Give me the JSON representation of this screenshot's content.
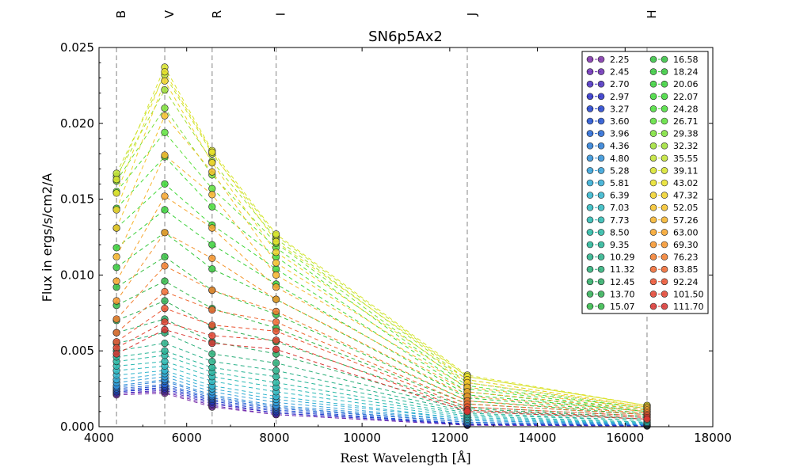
{
  "chart_data": {
    "type": "line",
    "title": "SN6p5Ax2",
    "xlabel": "Rest Wavelength [Å]",
    "ylabel": "Flux in ergs/s/cm2/A",
    "xlim": [
      4000,
      18000
    ],
    "ylim": [
      0.0,
      0.025
    ],
    "xticks": [
      "4000",
      "6000",
      "8000",
      "10000",
      "12000",
      "14000",
      "16000",
      "18000"
    ],
    "yticks": [
      "0.000",
      "0.005",
      "0.010",
      "0.015",
      "0.020",
      "0.025"
    ],
    "bands": [
      {
        "name": "B",
        "wavelength": 4400
      },
      {
        "name": "V",
        "wavelength": 5500
      },
      {
        "name": "R",
        "wavelength": 6580
      },
      {
        "name": "I",
        "wavelength": 8040
      },
      {
        "name": "J",
        "wavelength": 12400
      },
      {
        "name": "H",
        "wavelength": 16500
      }
    ],
    "legend_location": "upper right",
    "x": [
      4400,
      5500,
      6580,
      8040,
      12400,
      16500
    ],
    "series": [
      {
        "name": "2.25",
        "color": "#7b2fa8",
        "values": [
          0.0021,
          0.0022,
          0.0013,
          0.0008,
          0.0001,
          5e-05
        ]
      },
      {
        "name": "2.45",
        "color": "#6a2bb4",
        "values": [
          0.0022,
          0.0023,
          0.0014,
          0.0008,
          0.0001,
          5e-05
        ]
      },
      {
        "name": "2.70",
        "color": "#4a2ec0",
        "values": [
          0.0022,
          0.0024,
          0.0015,
          0.0009,
          0.00015,
          6e-05
        ]
      },
      {
        "name": "2.97",
        "color": "#2a2ec8",
        "values": [
          0.0023,
          0.0025,
          0.0016,
          0.0009,
          0.00015,
          7e-05
        ]
      },
      {
        "name": "3.27",
        "color": "#1f3fcc",
        "values": [
          0.0023,
          0.0026,
          0.0017,
          0.001,
          0.0002,
          8e-05
        ]
      },
      {
        "name": "3.60",
        "color": "#2050d0",
        "values": [
          0.0024,
          0.0027,
          0.0018,
          0.0011,
          0.0002,
          0.0001
        ]
      },
      {
        "name": "3.96",
        "color": "#2566d4",
        "values": [
          0.0025,
          0.0028,
          0.0019,
          0.0012,
          0.0003,
          0.0001
        ]
      },
      {
        "name": "4.36",
        "color": "#2a7cd6",
        "values": [
          0.0026,
          0.003,
          0.002,
          0.0013,
          0.0003,
          0.00012
        ]
      },
      {
        "name": "4.80",
        "color": "#3090d8",
        "values": [
          0.0027,
          0.0031,
          0.0021,
          0.0014,
          0.0004,
          0.00015
        ]
      },
      {
        "name": "5.28",
        "color": "#33a0d8",
        "values": [
          0.0029,
          0.0033,
          0.0023,
          0.0016,
          0.0004,
          0.0002
        ]
      },
      {
        "name": "5.81",
        "color": "#33acd4",
        "values": [
          0.0031,
          0.0035,
          0.0025,
          0.0018,
          0.0005,
          0.0002
        ]
      },
      {
        "name": "6.39",
        "color": "#30b4cc",
        "values": [
          0.0034,
          0.0037,
          0.0027,
          0.002,
          0.0005,
          0.00025
        ]
      },
      {
        "name": "7.03",
        "color": "#2db8c0",
        "values": [
          0.0037,
          0.004,
          0.003,
          0.0023,
          0.0006,
          0.0003
        ]
      },
      {
        "name": "7.73",
        "color": "#2ab8b2",
        "values": [
          0.004,
          0.0043,
          0.0033,
          0.0026,
          0.0007,
          0.0003
        ]
      },
      {
        "name": "8.50",
        "color": "#28b8a4",
        "values": [
          0.0043,
          0.0047,
          0.0036,
          0.0029,
          0.0008,
          0.0004
        ]
      },
      {
        "name": "9.35",
        "color": "#26b496",
        "values": [
          0.0046,
          0.005,
          0.0039,
          0.0033,
          0.0009,
          0.0004
        ]
      },
      {
        "name": "10.29",
        "color": "#28b088",
        "values": [
          0.005,
          0.0055,
          0.0043,
          0.0037,
          0.001,
          0.0005
        ]
      },
      {
        "name": "11.32",
        "color": "#2aae78",
        "values": [
          0.0055,
          0.0062,
          0.0048,
          0.0042,
          0.0011,
          0.0005
        ]
      },
      {
        "name": "12.45",
        "color": "#2eac66",
        "values": [
          0.0062,
          0.0071,
          0.0056,
          0.0048,
          0.0012,
          0.0006
        ]
      },
      {
        "name": "13.70",
        "color": "#30ae55",
        "values": [
          0.007,
          0.0083,
          0.0066,
          0.0056,
          0.0013,
          0.0007
        ]
      },
      {
        "name": "15.07",
        "color": "#32b848",
        "values": [
          0.008,
          0.0096,
          0.0078,
          0.0065,
          0.0015,
          0.0008
        ]
      },
      {
        "name": "16.58",
        "color": "#34c040",
        "values": [
          0.0092,
          0.0112,
          0.009,
          0.0074,
          0.0017,
          0.0008
        ]
      },
      {
        "name": "18.24",
        "color": "#36c83c",
        "values": [
          0.0105,
          0.0128,
          0.0104,
          0.0084,
          0.0019,
          0.0009
        ]
      },
      {
        "name": "20.06",
        "color": "#3ad03a",
        "values": [
          0.0118,
          0.0143,
          0.012,
          0.0094,
          0.0021,
          0.001
        ]
      },
      {
        "name": "22.07",
        "color": "#40d838",
        "values": [
          0.0131,
          0.016,
          0.0133,
          0.0104,
          0.0023,
          0.001
        ]
      },
      {
        "name": "24.28",
        "color": "#4ade3a",
        "values": [
          0.0144,
          0.0178,
          0.0145,
          0.0112,
          0.0025,
          0.0011
        ]
      },
      {
        "name": "26.71",
        "color": "#5ee03c",
        "values": [
          0.0155,
          0.0194,
          0.0157,
          0.0118,
          0.0027,
          0.0012
        ]
      },
      {
        "name": "29.38",
        "color": "#7ee03a",
        "values": [
          0.0162,
          0.021,
          0.0166,
          0.0121,
          0.0029,
          0.0012
        ]
      },
      {
        "name": "32.32",
        "color": "#a0e036",
        "values": [
          0.0165,
          0.0222,
          0.0175,
          0.0124,
          0.0031,
          0.0013
        ]
      },
      {
        "name": "35.55",
        "color": "#c2e432",
        "values": [
          0.0167,
          0.0232,
          0.018,
          0.0126,
          0.0033,
          0.0014
        ]
      },
      {
        "name": "39.11",
        "color": "#d8e42e",
        "values": [
          0.0163,
          0.0237,
          0.0182,
          0.0127,
          0.0034,
          0.0014
        ]
      },
      {
        "name": "43.02",
        "color": "#e8e02a",
        "values": [
          0.0154,
          0.0234,
          0.0181,
          0.0122,
          0.0033,
          0.0014
        ]
      },
      {
        "name": "47.32",
        "color": "#f0d22a",
        "values": [
          0.0143,
          0.0228,
          0.0174,
          0.0115,
          0.0031,
          0.0013
        ]
      },
      {
        "name": "52.05",
        "color": "#f4c22a",
        "values": [
          0.0131,
          0.0205,
          0.0168,
          0.0108,
          0.0029,
          0.0013
        ]
      },
      {
        "name": "57.26",
        "color": "#f6b42c",
        "values": [
          0.0112,
          0.0179,
          0.0153,
          0.01,
          0.0026,
          0.0012
        ]
      },
      {
        "name": "63.00",
        "color": "#f6a42c",
        "values": [
          0.0096,
          0.0152,
          0.0131,
          0.0092,
          0.0023,
          0.0011
        ]
      },
      {
        "name": "69.30",
        "color": "#f4942c",
        "values": [
          0.0083,
          0.0128,
          0.0111,
          0.0084,
          0.002,
          0.001
        ]
      },
      {
        "name": "76.23",
        "color": "#f27e2e",
        "values": [
          0.0071,
          0.0106,
          0.009,
          0.0076,
          0.0017,
          0.0009
        ]
      },
      {
        "name": "83.85",
        "color": "#ee6830",
        "values": [
          0.0062,
          0.0089,
          0.0077,
          0.0069,
          0.0015,
          0.0008
        ]
      },
      {
        "name": "92.24",
        "color": "#ea5230",
        "values": [
          0.0056,
          0.0078,
          0.0067,
          0.0063,
          0.0013,
          0.0007
        ]
      },
      {
        "name": "101.50",
        "color": "#e24230",
        "values": [
          0.0052,
          0.0069,
          0.006,
          0.0057,
          0.0011,
          0.0006
        ]
      },
      {
        "name": "111.70",
        "color": "#d83430",
        "values": [
          0.0048,
          0.0064,
          0.0055,
          0.0051,
          0.001,
          0.0005
        ]
      }
    ]
  }
}
